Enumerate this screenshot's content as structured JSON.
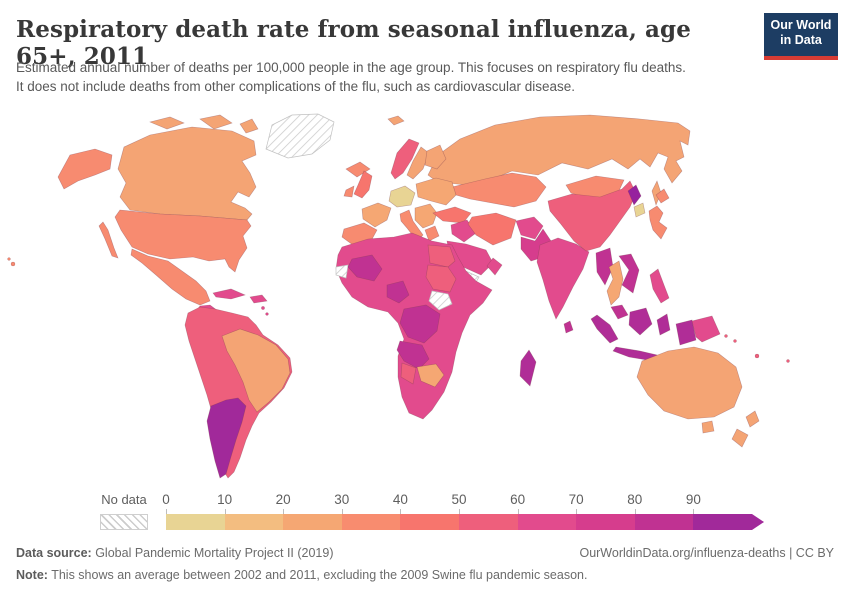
{
  "header": {
    "title": "Respiratory death rate from seasonal influenza, age 65+, 2011",
    "subtitle_lines": [
      "Estimated annual number of deaths per 100,000 people in the age group. This focuses on respiratory flu deaths.",
      "It does not include deaths from other complications of the flu, such as cardiovascular disease."
    ],
    "logo": {
      "line1": "Our World",
      "line2": "in Data"
    }
  },
  "footer": {
    "data_source_label": "Data source:",
    "data_source": " Global Pandemic Mortality Project II (2019)",
    "link": "OurWorldinData.org/influenza-deaths | CC BY",
    "note_label": "Note:",
    "note": " This shows an average between 2002 and 2011, excluding the 2009 Swine flu pandemic season."
  },
  "colors": {
    "logo_bg": "#1d3d63",
    "logo_underline": "#d73c34",
    "no_data_hatch": "#cccccc",
    "border": "rgba(121,59,77,0.42)"
  },
  "chart_data": {
    "type": "choropleth",
    "title": "Respiratory death rate from seasonal influenza, age 65+, 2011",
    "unit": "estimated annual deaths per 100,000 people aged 65+",
    "year": "2011",
    "legend": {
      "no_data_label": "No data",
      "ticks": [
        "0",
        "10",
        "20",
        "30",
        "40",
        "50",
        "60",
        "70",
        "80",
        "90"
      ],
      "segment_colors": [
        "#e8d494",
        "#f3bd80",
        "#f5a773",
        "#f88c6f",
        "#f7756d",
        "#ee5f7c",
        "#e24b8d",
        "#d63d8d",
        "#c03292",
        "#a1299a"
      ],
      "arrow_color": "#a1299a"
    },
    "regions": [
      {
        "id": "canada",
        "label": "Canada",
        "band": "20-30",
        "color": "#f4a474"
      },
      {
        "id": "usa",
        "label": "United States",
        "band": "30-40",
        "color": "#f78b70"
      },
      {
        "id": "mexico",
        "label": "Mexico",
        "band": "30-40",
        "color": "#f78b70"
      },
      {
        "id": "greenland",
        "label": "Greenland",
        "band": "No data",
        "color": "no-data"
      },
      {
        "id": "central-america",
        "label": "Central America",
        "band": "60-70",
        "color": "#e24b8d"
      },
      {
        "id": "cuba",
        "label": "Cuba",
        "band": "60-70",
        "color": "#e24b8d"
      },
      {
        "id": "hispaniola",
        "label": "Hispaniola",
        "band": "60-70",
        "color": "#e24b8d"
      },
      {
        "id": "caribbean-islands",
        "label": "Caribbean islands",
        "band": "60-70",
        "color": "#e24b8d"
      },
      {
        "id": "south-america-andes",
        "label": "Colombia, Venezuela, Peru, Bolivia",
        "band": "50-60",
        "color": "#ee5f7c"
      },
      {
        "id": "brazil",
        "label": "Brazil",
        "band": "20-30",
        "color": "#f4a474"
      },
      {
        "id": "argentina-chile",
        "label": "Argentina and Chile",
        "band": "90+",
        "color": "#a1299a"
      },
      {
        "id": "iceland",
        "label": "Iceland",
        "band": "30-40",
        "color": "#f78b70"
      },
      {
        "id": "norway",
        "label": "Norway",
        "band": "50-60",
        "color": "#ee5f7c"
      },
      {
        "id": "sweden",
        "label": "Sweden",
        "band": "20-30",
        "color": "#f4a474"
      },
      {
        "id": "finland",
        "label": "Finland",
        "band": "20-30",
        "color": "#f4a474"
      },
      {
        "id": "united-kingdom",
        "label": "United Kingdom",
        "band": "40-50",
        "color": "#f7756d"
      },
      {
        "id": "ireland",
        "label": "Ireland",
        "band": "30-40",
        "color": "#f78b70"
      },
      {
        "id": "france",
        "label": "France",
        "band": "20-30",
        "color": "#f5a773"
      },
      {
        "id": "iberia",
        "label": "Spain and Portugal",
        "band": "30-40",
        "color": "#f78b70"
      },
      {
        "id": "germany-central-europe",
        "label": "Germany and Central Europe",
        "band": "0-10",
        "color": "#e8d494"
      },
      {
        "id": "italy",
        "label": "Italy",
        "band": "30-40",
        "color": "#f88c6f"
      },
      {
        "id": "balkans",
        "label": "Balkans and Romania",
        "band": "20-30",
        "color": "#f5a773"
      },
      {
        "id": "greece",
        "label": "Greece",
        "band": "30-40",
        "color": "#f78b70"
      },
      {
        "id": "eastern-europe",
        "label": "Poland, Belarus, Ukraine",
        "band": "20-30",
        "color": "#f5a773"
      },
      {
        "id": "russia",
        "label": "Russia",
        "band": "20-30",
        "color": "#f4a474"
      },
      {
        "id": "kazakhstan-central-asia",
        "label": "Kazakhstan and Central Asia",
        "band": "30-40",
        "color": "#f78b70"
      },
      {
        "id": "turkey",
        "label": "Turkey",
        "band": "40-50",
        "color": "#f7756d"
      },
      {
        "id": "iraq-levant",
        "label": "Iraq and Levant",
        "band": "60-70",
        "color": "#e24b8d"
      },
      {
        "id": "iran",
        "label": "Iran",
        "band": "40-50",
        "color": "#f7756d"
      },
      {
        "id": "saudi-arabia",
        "label": "Saudi Arabia",
        "band": "60-70",
        "color": "#e24b8d"
      },
      {
        "id": "yemen",
        "label": "Yemen",
        "band": "No data",
        "color": "no-data"
      },
      {
        "id": "oman",
        "label": "Oman",
        "band": "60-70",
        "color": "#e24b8d"
      },
      {
        "id": "afghanistan",
        "label": "Afghanistan",
        "band": "60-70",
        "color": "#e24b8d"
      },
      {
        "id": "pakistan",
        "label": "Pakistan",
        "band": "70-80",
        "color": "#d63d8d"
      },
      {
        "id": "india",
        "label": "India",
        "band": "60-70",
        "color": "#e24b8d"
      },
      {
        "id": "sri-lanka",
        "label": "Sri Lanka",
        "band": "80-90",
        "color": "#c03292"
      },
      {
        "id": "china",
        "label": "China",
        "band": "50-60",
        "color": "#ee5f7c"
      },
      {
        "id": "mongolia",
        "label": "Mongolia",
        "band": "30-40",
        "color": "#f78b70"
      },
      {
        "id": "north-korea",
        "label": "North Korea",
        "band": "90+",
        "color": "#96219e"
      },
      {
        "id": "south-korea",
        "label": "South Korea",
        "band": "0-10",
        "color": "#e8d494"
      },
      {
        "id": "japan",
        "label": "Japan",
        "band": "30-40",
        "color": "#f78b70"
      },
      {
        "id": "myanmar",
        "label": "Myanmar",
        "band": "80-90",
        "color": "#c03292"
      },
      {
        "id": "thailand",
        "label": "Thailand",
        "band": "20-30",
        "color": "#f5a773"
      },
      {
        "id": "vietnam-laos-cambodia",
        "label": "Vietnam, Laos, Cambodia",
        "band": "80-90",
        "color": "#c03292"
      },
      {
        "id": "malaysia",
        "label": "Malaysia",
        "band": "80-90",
        "color": "#c03292"
      },
      {
        "id": "indonesia",
        "label": "Indonesia",
        "band": "80-90",
        "color": "#b02d97"
      },
      {
        "id": "philippines",
        "label": "Philippines",
        "band": "60-70",
        "color": "#e24b8d"
      },
      {
        "id": "papua-new-guinea",
        "label": "Papua New Guinea",
        "band": "60-70",
        "color": "#e24b8d"
      },
      {
        "id": "australia",
        "label": "Australia",
        "band": "20-30",
        "color": "#f4a474"
      },
      {
        "id": "new-zealand",
        "label": "New Zealand",
        "band": "20-30",
        "color": "#f4a474"
      },
      {
        "id": "africa",
        "label": "Sub-Saharan and North Africa (base)",
        "band": "60-70",
        "color": "#e24b8d"
      },
      {
        "id": "egypt",
        "label": "Egypt",
        "band": "50-60",
        "color": "#ee5f7c"
      },
      {
        "id": "sudan",
        "label": "Sudan",
        "band": "50-60",
        "color": "#ee5f7c"
      },
      {
        "id": "south-sudan",
        "label": "South Sudan",
        "band": "No data",
        "color": "no-data"
      },
      {
        "id": "western-sahara",
        "label": "Western Sahara",
        "band": "No data",
        "color": "no-data"
      },
      {
        "id": "mali",
        "label": "Mali",
        "band": "80-90",
        "color": "#c03292"
      },
      {
        "id": "nigeria",
        "label": "Nigeria",
        "band": "80-90",
        "color": "#c03292"
      },
      {
        "id": "drc",
        "label": "Democratic Republic of Congo",
        "band": "80-90",
        "color": "#c03292"
      },
      {
        "id": "angola",
        "label": "Angola",
        "band": "80-90",
        "color": "#c03292"
      },
      {
        "id": "namibia",
        "label": "Namibia",
        "band": "50-60",
        "color": "#ee5f7c"
      },
      {
        "id": "botswana-zimbabwe",
        "label": "Botswana and Zimbabwe",
        "band": "20-30",
        "color": "#f5a773"
      },
      {
        "id": "madagascar",
        "label": "Madagascar",
        "band": "80-90",
        "color": "#b02d97"
      },
      {
        "id": "svalbard",
        "label": "Svalbard",
        "band": "20-30",
        "color": "#f4a474"
      },
      {
        "id": "hawaii",
        "label": "Hawaii",
        "band": "30-40",
        "color": "#f78b70"
      },
      {
        "id": "pacific-islands",
        "label": "Pacific islands",
        "band": "50-60",
        "color": "#ee5f7c"
      }
    ]
  }
}
